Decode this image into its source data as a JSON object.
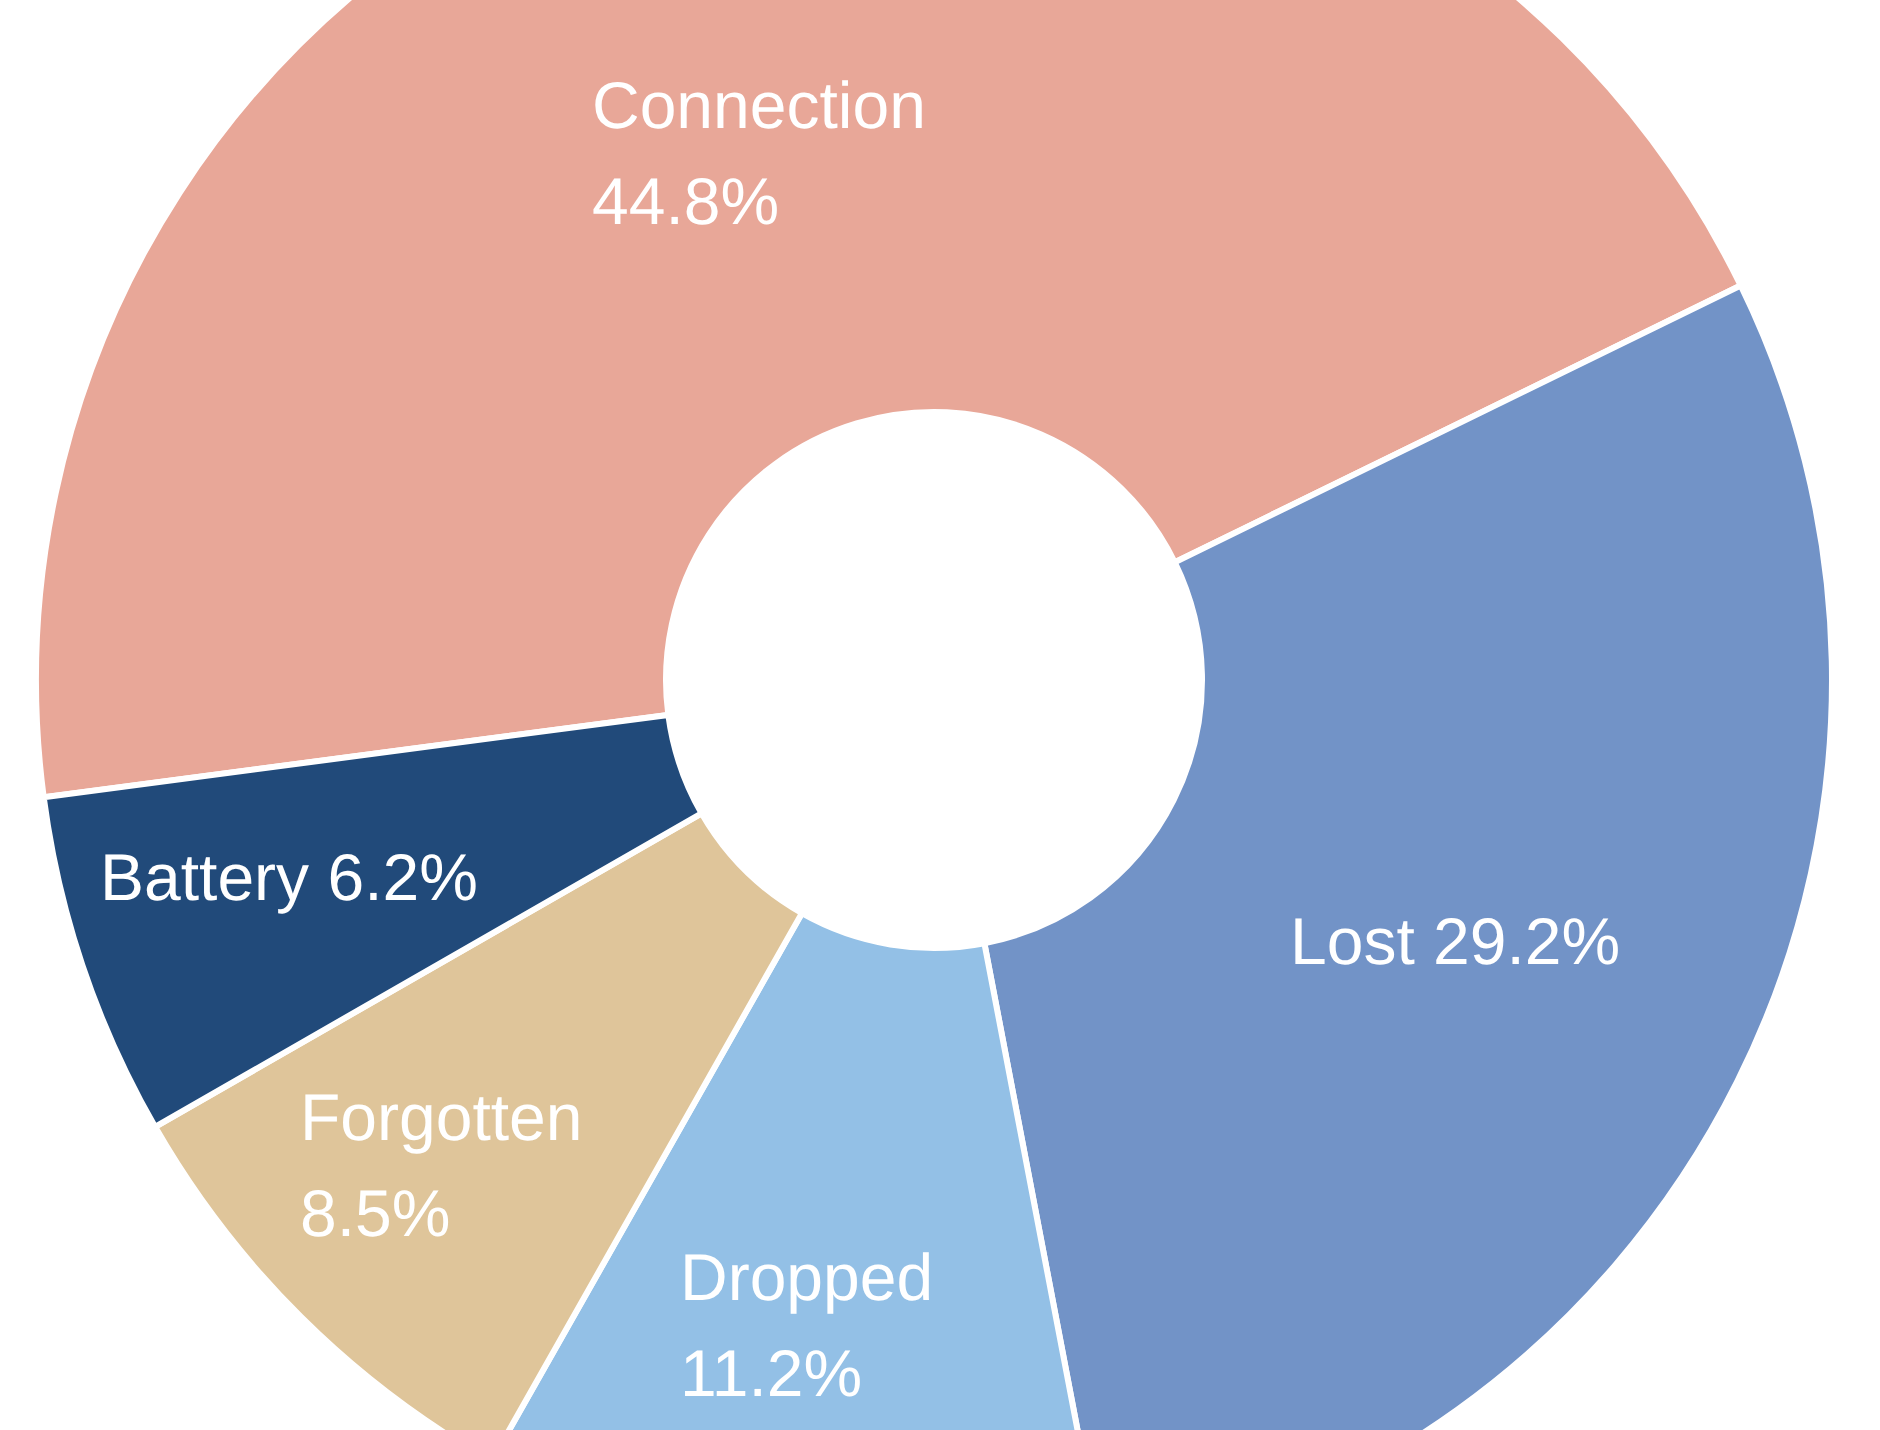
{
  "chart_data": {
    "type": "donut",
    "categories": [
      "Connection",
      "Lost",
      "Dropped",
      "Forgotten",
      "Battery"
    ],
    "values": [
      44.8,
      29.2,
      11.2,
      8.5,
      6.2
    ],
    "value_labels": [
      "44.8%",
      "29.2%",
      "11.2%",
      "8.5%",
      "6.2%"
    ],
    "colors": [
      "#e8a798",
      "#7293c7",
      "#93c0e6",
      "#dfc59a",
      "#214a7a"
    ]
  }
}
